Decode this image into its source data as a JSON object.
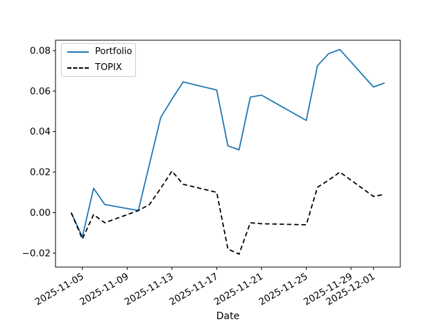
{
  "figure": {
    "background": "#ffffff"
  },
  "legend": {
    "position": "upper left",
    "entries": [
      {
        "label": "Portfolio",
        "color": "#1f77b4",
        "style": "solid"
      },
      {
        "label": "TOPIX",
        "color": "#000000",
        "style": "dashed"
      }
    ]
  },
  "chart_data": {
    "type": "line",
    "title": "",
    "xlabel": "Date",
    "ylabel": "",
    "grid": false,
    "legend_position": "upper left",
    "x": [
      "2025-11-04",
      "2025-11-05",
      "2025-11-06",
      "2025-11-07",
      "2025-11-10",
      "2025-11-11",
      "2025-11-12",
      "2025-11-13",
      "2025-11-14",
      "2025-11-17",
      "2025-11-18",
      "2025-11-19",
      "2025-11-20",
      "2025-11-21",
      "2025-11-25",
      "2025-11-26",
      "2025-11-27",
      "2025-11-28",
      "2025-12-01",
      "2025-12-02"
    ],
    "series": [
      {
        "name": "Portfolio",
        "color": "#1f77b4",
        "style": "solid",
        "values": [
          0.0,
          -0.012,
          0.012,
          0.004,
          0.001,
          0.024,
          0.047,
          0.056,
          0.0645,
          0.0605,
          0.033,
          0.031,
          0.057,
          0.058,
          0.0455,
          0.0725,
          0.0785,
          0.0805,
          0.062,
          0.064
        ]
      },
      {
        "name": "TOPIX",
        "color": "#000000",
        "style": "dashed",
        "values": [
          0.0,
          -0.013,
          -0.001,
          -0.005,
          0.001,
          0.004,
          0.012,
          0.0205,
          0.014,
          0.01,
          -0.018,
          -0.0205,
          -0.005,
          -0.0055,
          -0.006,
          0.0125,
          0.016,
          0.02,
          0.008,
          0.009
        ]
      }
    ],
    "xticks": [
      "2025-11-05",
      "2025-11-09",
      "2025-11-13",
      "2025-11-17",
      "2025-11-21",
      "2025-11-25",
      "2025-11-29",
      "2025-12-01"
    ],
    "yticks": {
      "values": [
        -0.02,
        0.0,
        0.02,
        0.04,
        0.06,
        0.08
      ],
      "labels": [
        "−0.02",
        "0.00",
        "0.02",
        "0.04",
        "0.06",
        "0.08"
      ]
    },
    "xlim_days": [
      -1.4,
      29.4
    ],
    "ylim": [
      -0.0269,
      0.0851
    ]
  }
}
